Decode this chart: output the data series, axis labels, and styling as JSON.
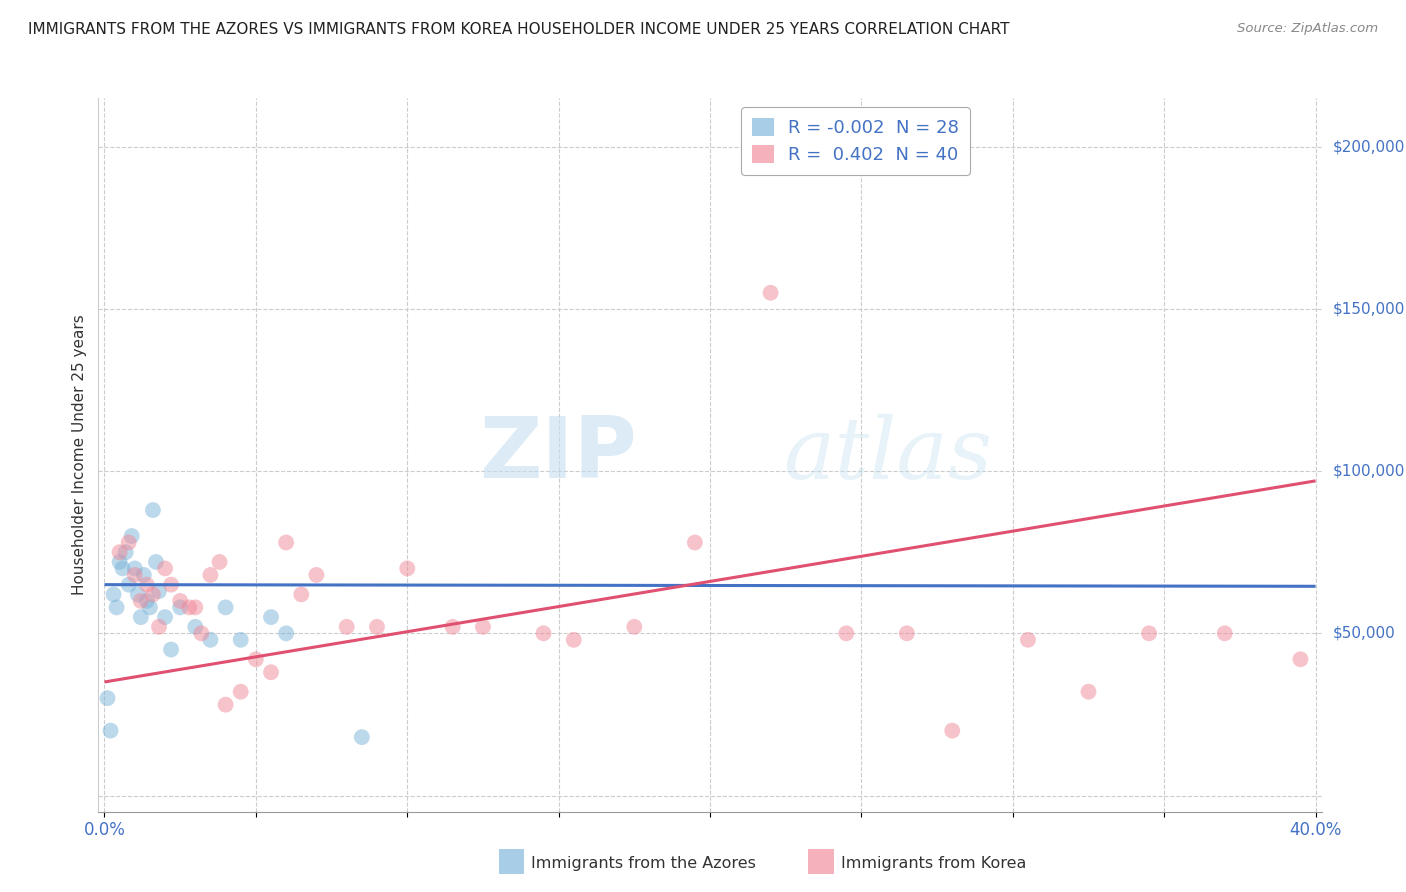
{
  "title": "IMMIGRANTS FROM THE AZORES VS IMMIGRANTS FROM KOREA HOUSEHOLDER INCOME UNDER 25 YEARS CORRELATION CHART",
  "source": "Source: ZipAtlas.com",
  "ylabel": "Householder Income Under 25 years",
  "xlim": [
    -0.002,
    0.402
  ],
  "ylim": [
    -5000,
    215000
  ],
  "yticks": [
    0,
    50000,
    100000,
    150000,
    200000
  ],
  "ytick_labels": [
    "",
    "$50,000",
    "$100,000",
    "$150,000",
    "$200,000"
  ],
  "xticks": [
    0.0,
    0.05,
    0.1,
    0.15,
    0.2,
    0.25,
    0.3,
    0.35,
    0.4
  ],
  "xtick_labels": [
    "0.0%",
    "",
    "",
    "",
    "",
    "",
    "",
    "",
    "40.0%"
  ],
  "watermark_zip": "ZIP",
  "watermark_atlas": "atlas",
  "R_azores": -0.002,
  "N_azores": 28,
  "R_korea": 0.402,
  "N_korea": 40,
  "azores_color": "#7ab3d9",
  "korea_color": "#f08898",
  "regression_line_azores": {
    "x0": 0.0,
    "x1": 0.4,
    "y0": 65000,
    "y1": 64500
  },
  "regression_line_korea": {
    "x0": 0.0,
    "x1": 0.4,
    "y0": 35000,
    "y1": 97000
  },
  "background_color": "#ffffff",
  "grid_color": "#cccccc",
  "legend_label1": "Immigrants from the Azores",
  "legend_label2": "Immigrants from Korea",
  "azores_points_x": [
    0.001,
    0.002,
    0.003,
    0.004,
    0.005,
    0.006,
    0.007,
    0.008,
    0.009,
    0.01,
    0.011,
    0.012,
    0.013,
    0.014,
    0.015,
    0.016,
    0.017,
    0.018,
    0.02,
    0.022,
    0.025,
    0.03,
    0.035,
    0.04,
    0.045,
    0.055,
    0.06,
    0.085
  ],
  "azores_points_y": [
    30000,
    20000,
    62000,
    58000,
    72000,
    70000,
    75000,
    65000,
    80000,
    70000,
    62000,
    55000,
    68000,
    60000,
    58000,
    88000,
    72000,
    63000,
    55000,
    45000,
    58000,
    52000,
    48000,
    58000,
    48000,
    55000,
    50000,
    18000
  ],
  "korea_points_x": [
    0.005,
    0.008,
    0.01,
    0.012,
    0.014,
    0.016,
    0.018,
    0.02,
    0.022,
    0.025,
    0.028,
    0.03,
    0.032,
    0.035,
    0.038,
    0.04,
    0.045,
    0.05,
    0.055,
    0.06,
    0.065,
    0.07,
    0.08,
    0.09,
    0.1,
    0.115,
    0.125,
    0.145,
    0.155,
    0.175,
    0.195,
    0.22,
    0.245,
    0.265,
    0.28,
    0.305,
    0.325,
    0.345,
    0.37,
    0.395
  ],
  "korea_points_y": [
    75000,
    78000,
    68000,
    60000,
    65000,
    62000,
    52000,
    70000,
    65000,
    60000,
    58000,
    58000,
    50000,
    68000,
    72000,
    28000,
    32000,
    42000,
    38000,
    78000,
    62000,
    68000,
    52000,
    52000,
    70000,
    52000,
    52000,
    50000,
    48000,
    52000,
    78000,
    155000,
    50000,
    50000,
    20000,
    48000,
    32000,
    50000,
    50000,
    42000
  ]
}
